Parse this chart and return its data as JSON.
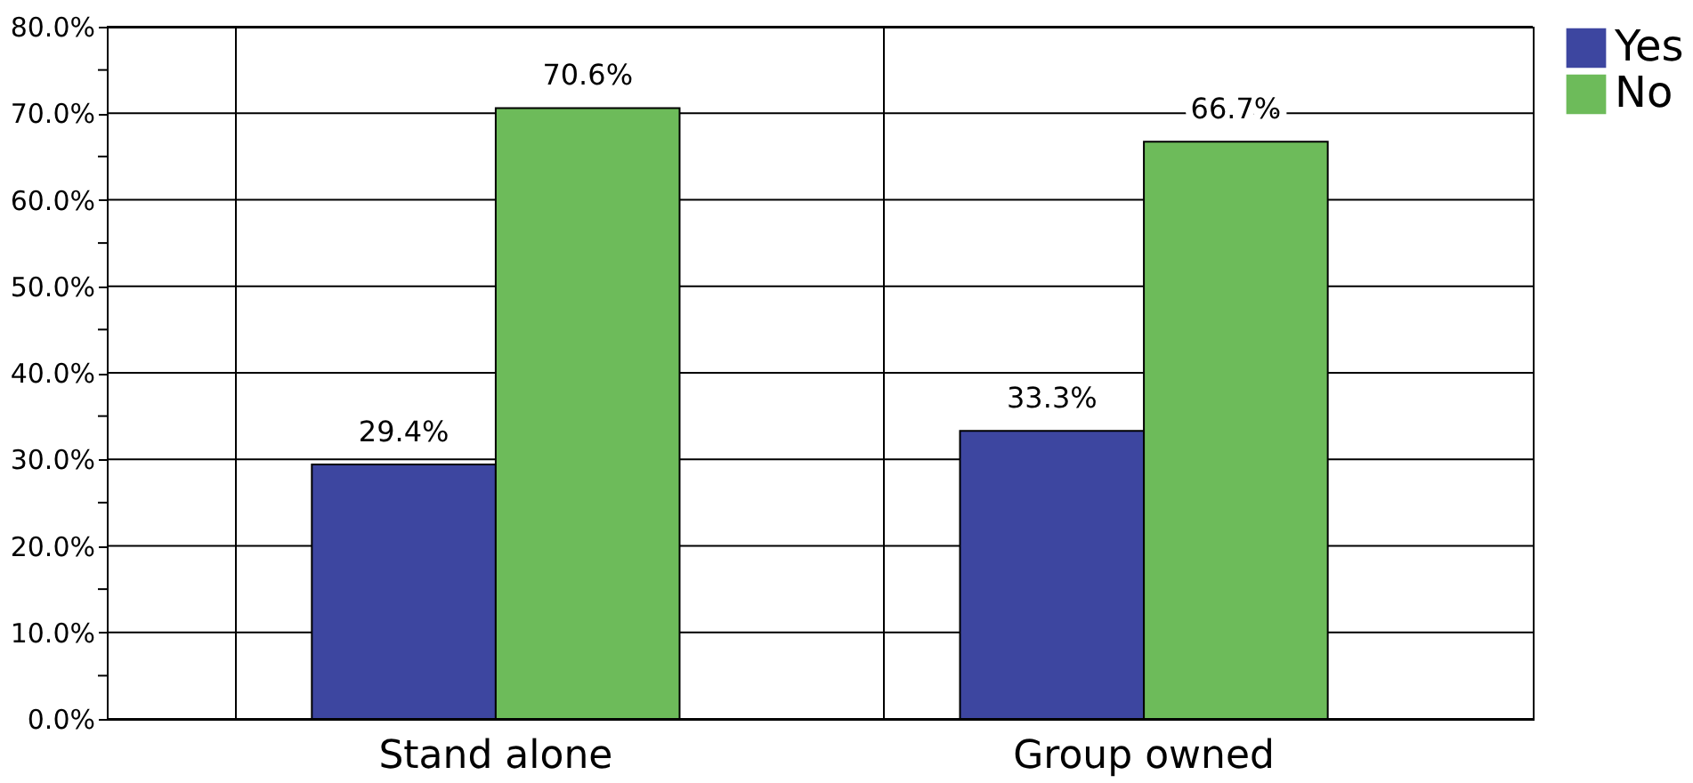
{
  "chart_data": {
    "type": "bar",
    "categories": [
      "Stand alone",
      "Group owned"
    ],
    "series": [
      {
        "name": "Yes",
        "color": "#3d46a0",
        "values": [
          29.4,
          33.3
        ]
      },
      {
        "name": "No",
        "color": "#6dbb5a",
        "values": [
          70.6,
          66.7
        ]
      }
    ],
    "ylim": [
      0,
      80
    ],
    "yticks": [
      {
        "value": 0,
        "label": "0.0%"
      },
      {
        "value": 5,
        "label": null
      },
      {
        "value": 10,
        "label": "10.0%"
      },
      {
        "value": 15,
        "label": null
      },
      {
        "value": 20,
        "label": "20.0%"
      },
      {
        "value": 25,
        "label": null
      },
      {
        "value": 30,
        "label": "30.0%"
      },
      {
        "value": 35,
        "label": null
      },
      {
        "value": 40,
        "label": "40.0%"
      },
      {
        "value": 45,
        "label": null
      },
      {
        "value": 50,
        "label": "50.0%"
      },
      {
        "value": 55,
        "label": null
      },
      {
        "value": 60,
        "label": "60.0%"
      },
      {
        "value": 65,
        "label": null
      },
      {
        "value": 70,
        "label": "70.0%"
      },
      {
        "value": 75,
        "label": null
      },
      {
        "value": 80,
        "label": "80.0%"
      }
    ],
    "value_labels": [
      [
        "29.4%",
        "33.3%"
      ],
      [
        "70.6%",
        "66.7%"
      ]
    ],
    "grid": true,
    "legend": "right"
  }
}
